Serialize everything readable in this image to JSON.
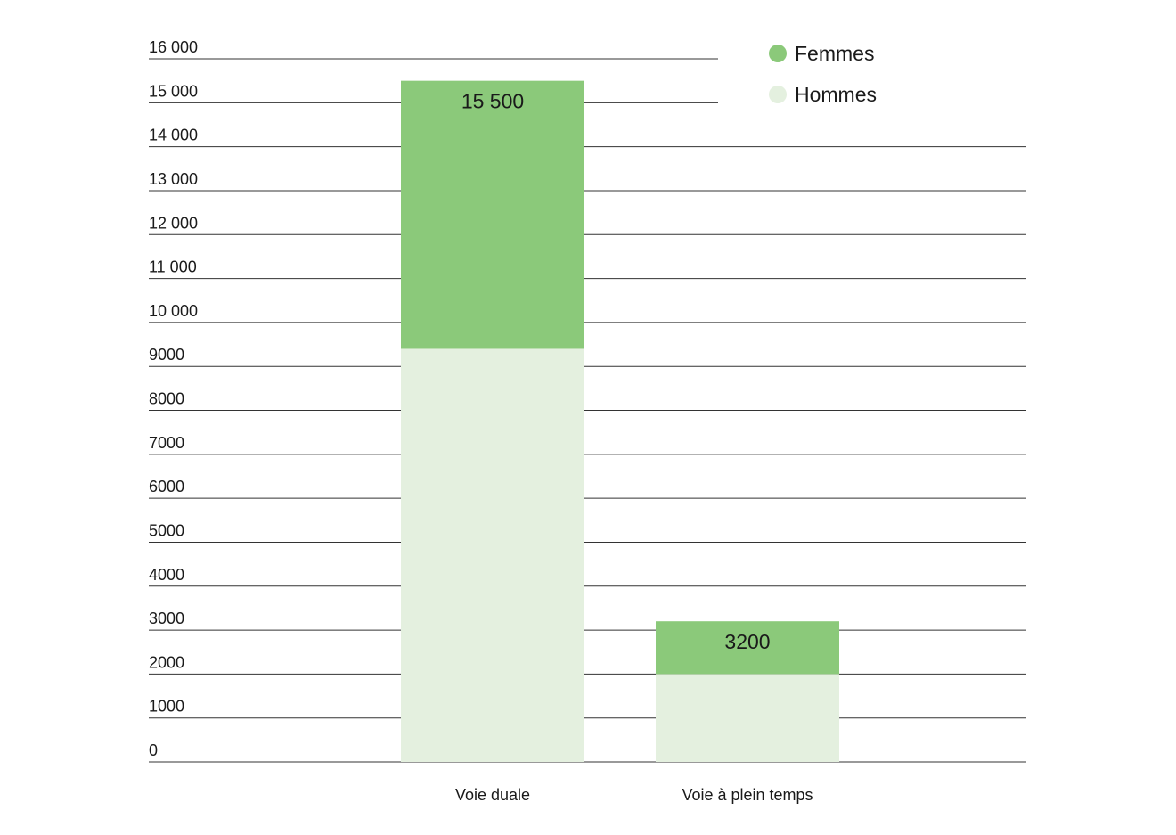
{
  "chart_data": {
    "type": "bar",
    "stacked": true,
    "title": "",
    "xlabel": "",
    "ylabel": "",
    "ylim": [
      0,
      16000
    ],
    "yticks": [
      0,
      1000,
      2000,
      3000,
      4000,
      5000,
      6000,
      7000,
      8000,
      9000,
      10000,
      11000,
      12000,
      13000,
      14000,
      15000,
      16000
    ],
    "ytick_labels": [
      "0",
      "1000",
      "2000",
      "3000",
      "4000",
      "5000",
      "6000",
      "7000",
      "8000",
      "9000",
      "10 000",
      "11 000",
      "12 000",
      "13 000",
      "14 000",
      "15 000",
      "16 000"
    ],
    "grid": true,
    "legend_position": "top-right",
    "categories": [
      "Voie duale",
      "Voie à plein temps"
    ],
    "series": [
      {
        "name": "Hommes",
        "color": "#e4f0df",
        "values": [
          9400,
          2000
        ]
      },
      {
        "name": "Femmes",
        "color": "#8bc97a",
        "values": [
          6100,
          1200
        ]
      }
    ],
    "totals": [
      15500,
      3200
    ],
    "total_labels": [
      "15 500",
      "3200"
    ]
  }
}
